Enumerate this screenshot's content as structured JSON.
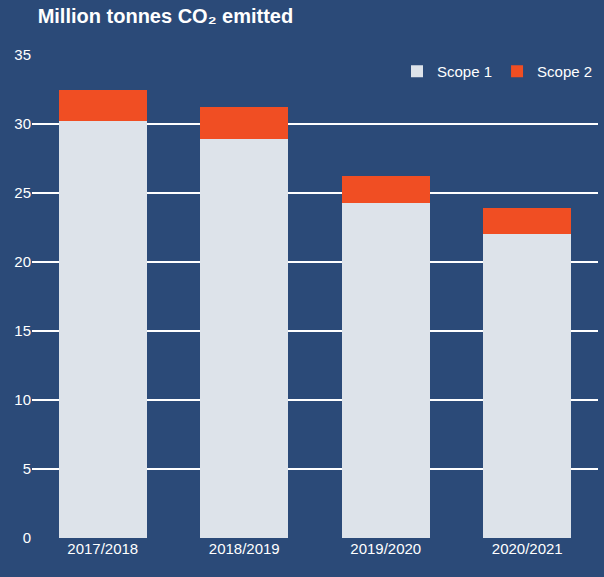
{
  "chart_data": {
    "type": "bar",
    "title": "Million tonnes CO₂ emitted",
    "categories": [
      "2017/2018",
      "2018/2019",
      "2019/2020",
      "2020/2021"
    ],
    "series": [
      {
        "name": "Scope 1",
        "color": "#dde3ea",
        "values": [
          30.2,
          28.9,
          24.3,
          22.0
        ]
      },
      {
        "name": "Scope 2",
        "color": "#f04e23",
        "values": [
          2.3,
          2.3,
          1.9,
          1.9
        ]
      }
    ],
    "stacked": true,
    "ylim": [
      0,
      35
    ],
    "yticks": [
      0,
      5,
      10,
      15,
      20,
      25,
      30,
      35
    ],
    "grid": true,
    "legend": "top right"
  }
}
